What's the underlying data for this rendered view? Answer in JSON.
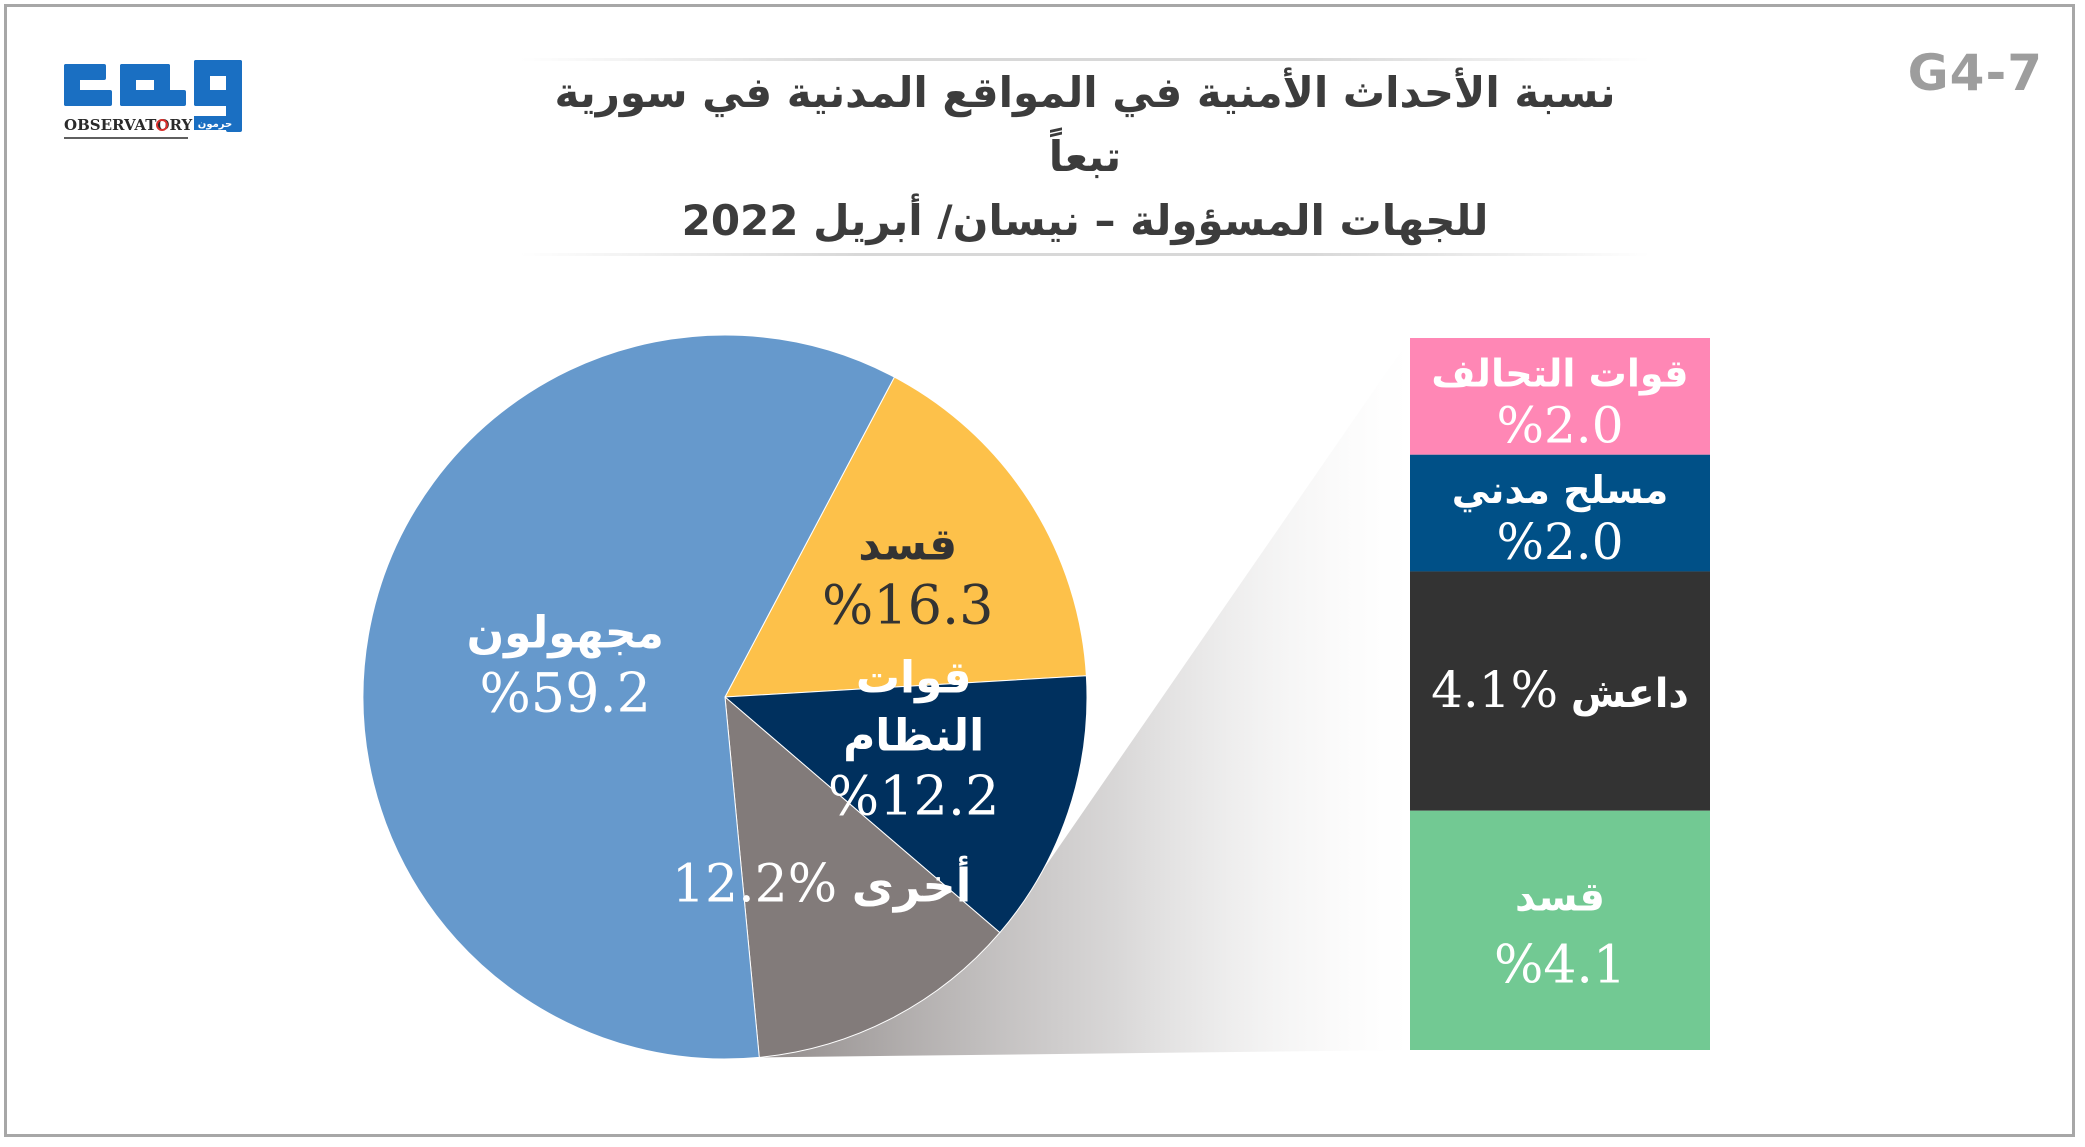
{
  "header": {
    "chart_id": "G4-7",
    "title_line1": "نسبة الأحداث الأمنية في المواقع المدنية في سورية تبعاً",
    "title_line2": "للجهات المسؤولة – نيسان/ أبريل 2022"
  },
  "logo": {
    "text_ar": "مرصد",
    "text_en": "OBSERVATORY",
    "sub_ar": "حرمون"
  },
  "colors": {
    "unknown": "#6699cc",
    "sdf": "#fdc14a",
    "regime": "#00305e",
    "other": "#827b7a",
    "coalition": "#ff87b5",
    "civil_armed": "#005087",
    "isis": "#333333",
    "sdf_breakout": "#72c993"
  },
  "chart_data": [
    {
      "type": "pie",
      "slices": [
        {
          "key": "sdf",
          "label": "قسد",
          "value": 16.3,
          "value_text": "%16.3",
          "color": "#fdc14a"
        },
        {
          "key": "regime",
          "label": "قوات النظام",
          "label_lines": [
            "قوات",
            "النظام"
          ],
          "value": 12.2,
          "value_text": "%12.2",
          "color": "#00305e"
        },
        {
          "key": "other",
          "label": "أخرى",
          "value": 12.2,
          "value_text": "%12.2",
          "color": "#827b7a"
        },
        {
          "key": "unknown",
          "label": "مجهولون",
          "value": 59.2,
          "value_text": "%59.2",
          "color": "#6699cc"
        }
      ]
    },
    {
      "type": "bar",
      "stacked": true,
      "breakdown_of": "أخرى",
      "segments": [
        {
          "key": "coalition",
          "label": "قوات التحالف",
          "value": 2.0,
          "value_text": "%2.0",
          "color": "#ff87b5"
        },
        {
          "key": "civil_armed",
          "label": "مسلح مدني",
          "value": 2.0,
          "value_text": "%2.0",
          "color": "#005087"
        },
        {
          "key": "isis",
          "label": "داعش",
          "value": 4.1,
          "value_text": "%4.1",
          "color": "#333333"
        },
        {
          "key": "sdf_breakout",
          "label": "قسد",
          "value": 4.1,
          "value_text": "%4.1",
          "color": "#72c993"
        }
      ]
    }
  ]
}
